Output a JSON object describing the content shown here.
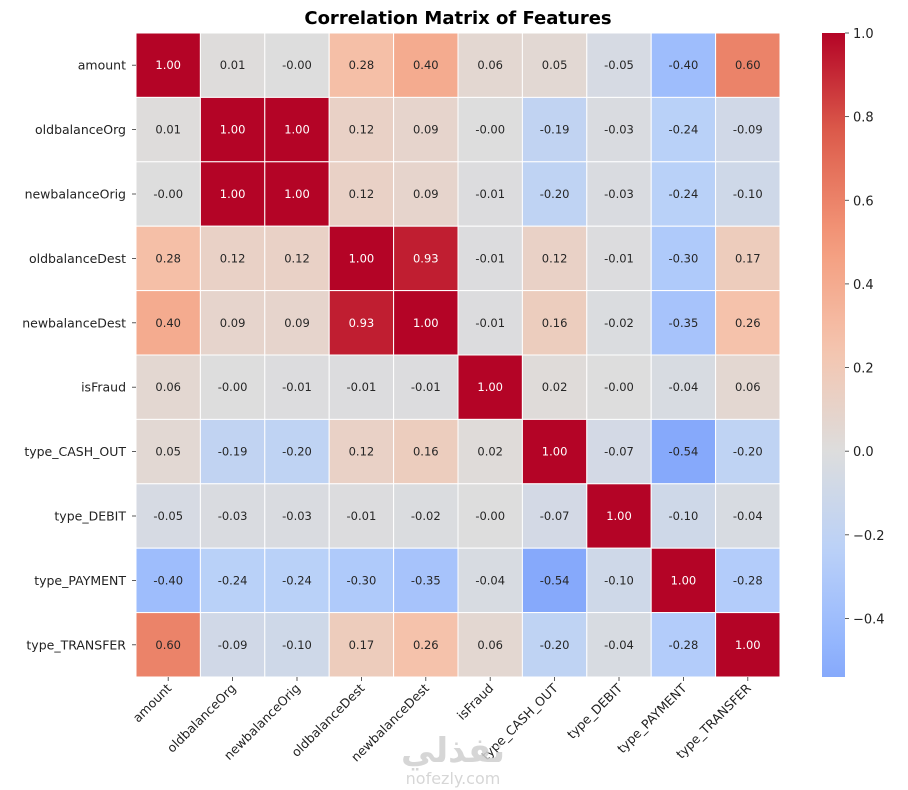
{
  "chart_data": {
    "type": "heatmap",
    "title": "Correlation Matrix of Features",
    "xlabel": "",
    "ylabel": "",
    "colormap": "coolwarm",
    "center": 0.0,
    "vmin": -0.54,
    "vmax": 1.0,
    "annotation_format": "0.2f",
    "labels": [
      "amount",
      "oldbalanceOrg",
      "newbalanceOrig",
      "oldbalanceDest",
      "newbalanceDest",
      "isFraud",
      "type_CASH_OUT",
      "type_DEBIT",
      "type_PAYMENT",
      "type_TRANSFER"
    ],
    "matrix": [
      [
        1.0,
        0.01,
        -0.0,
        0.28,
        0.4,
        0.06,
        0.05,
        -0.05,
        -0.4,
        0.6
      ],
      [
        0.01,
        1.0,
        1.0,
        0.12,
        0.09,
        -0.0,
        -0.19,
        -0.03,
        -0.24,
        -0.09
      ],
      [
        -0.0,
        1.0,
        1.0,
        0.12,
        0.09,
        -0.01,
        -0.2,
        -0.03,
        -0.24,
        -0.1
      ],
      [
        0.28,
        0.12,
        0.12,
        1.0,
        0.93,
        -0.01,
        0.12,
        -0.01,
        -0.3,
        0.17
      ],
      [
        0.4,
        0.09,
        0.09,
        0.93,
        1.0,
        -0.01,
        0.16,
        -0.02,
        -0.35,
        0.26
      ],
      [
        0.06,
        -0.0,
        -0.01,
        -0.01,
        -0.01,
        1.0,
        0.02,
        -0.0,
        -0.04,
        0.06
      ],
      [
        0.05,
        -0.19,
        -0.2,
        0.12,
        0.16,
        0.02,
        1.0,
        -0.07,
        -0.54,
        -0.2
      ],
      [
        -0.05,
        -0.03,
        -0.03,
        -0.01,
        -0.02,
        -0.0,
        -0.07,
        1.0,
        -0.1,
        -0.04
      ],
      [
        -0.4,
        -0.24,
        -0.24,
        -0.3,
        -0.35,
        -0.04,
        -0.54,
        -0.1,
        1.0,
        -0.28
      ],
      [
        0.6,
        -0.09,
        -0.1,
        0.17,
        0.26,
        0.06,
        -0.2,
        -0.04,
        -0.28,
        1.0
      ]
    ],
    "display_text": [
      [
        "1.00",
        "0.01",
        "-0.00",
        "0.28",
        "0.40",
        "0.06",
        "0.05",
        "-0.05",
        "-0.40",
        "0.60"
      ],
      [
        "0.01",
        "1.00",
        "1.00",
        "0.12",
        "0.09",
        "-0.00",
        "-0.19",
        "-0.03",
        "-0.24",
        "-0.09"
      ],
      [
        "-0.00",
        "1.00",
        "1.00",
        "0.12",
        "0.09",
        "-0.01",
        "-0.20",
        "-0.03",
        "-0.24",
        "-0.10"
      ],
      [
        "0.28",
        "0.12",
        "0.12",
        "1.00",
        "0.93",
        "-0.01",
        "0.12",
        "-0.01",
        "-0.30",
        "0.17"
      ],
      [
        "0.40",
        "0.09",
        "0.09",
        "0.93",
        "1.00",
        "-0.01",
        "0.16",
        "-0.02",
        "-0.35",
        "0.26"
      ],
      [
        "0.06",
        "-0.00",
        "-0.01",
        "-0.01",
        "-0.01",
        "1.00",
        "0.02",
        "-0.00",
        "-0.04",
        "0.06"
      ],
      [
        "0.05",
        "-0.19",
        "-0.20",
        "0.12",
        "0.16",
        "0.02",
        "1.00",
        "-0.07",
        "-0.54",
        "-0.20"
      ],
      [
        "-0.05",
        "-0.03",
        "-0.03",
        "-0.01",
        "-0.02",
        "-0.00",
        "-0.07",
        "1.00",
        "-0.10",
        "-0.04"
      ],
      [
        "-0.40",
        "-0.24",
        "-0.24",
        "-0.30",
        "-0.35",
        "-0.04",
        "-0.54",
        "-0.10",
        "1.00",
        "-0.28"
      ],
      [
        "0.60",
        "-0.09",
        "-0.10",
        "0.17",
        "0.26",
        "0.06",
        "-0.20",
        "-0.04",
        "-0.28",
        "1.00"
      ]
    ],
    "colorbar": {
      "ticks": [
        1.0,
        0.8,
        0.6,
        0.4,
        0.2,
        0.0,
        -0.2,
        -0.4
      ],
      "tick_labels": [
        "1.0",
        "0.8",
        "0.6",
        "0.4",
        "0.2",
        "0.0",
        "−0.2",
        "−0.4"
      ],
      "range": [
        -0.54,
        1.0
      ],
      "placement": "right"
    },
    "grid": false,
    "cell_line_color": "#ffffff",
    "colors": {
      "min": "#7b9ff9",
      "center": "#dddddd",
      "max": "#b40426"
    }
  },
  "watermark": {
    "arabic_text": "نفذلي",
    "latin_text": "nofezly.com"
  }
}
